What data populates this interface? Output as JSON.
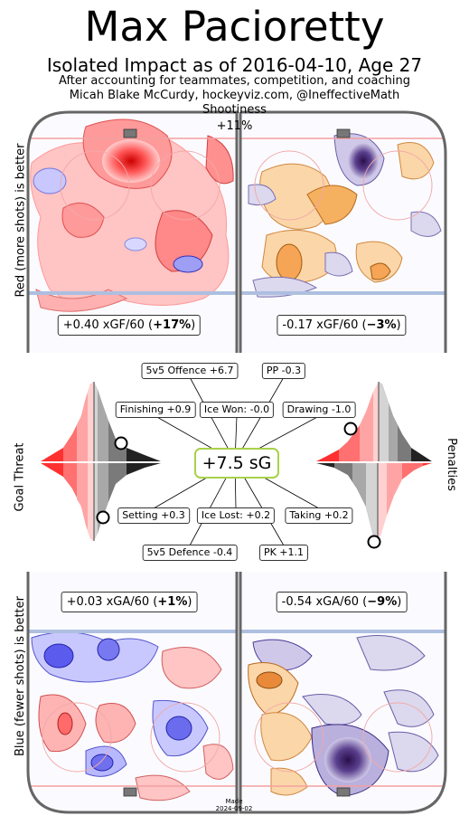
{
  "title": "Max Pacioretty",
  "subtitle": "Isolated Impact as of 2016-04-10, Age 27",
  "byline1": "After accounting for teammates, competition, and coaching",
  "byline2": "Micah Blake McCurdy, hockeyviz.com, @IneffectiveMath",
  "shootiness_label": "Shootiness",
  "shootiness_value": "+11%",
  "left_upper_label": "Red (more shots) is better",
  "left_lower_label": "Blue (fewer shots) is better",
  "goal_threat_label": "Goal Threat",
  "penalties_label": "Penalties",
  "made_label": "Made",
  "made_date": "2024-09-02",
  "colors": {
    "red": "#ff3333",
    "blue": "#4444ee",
    "orange": "#f0a050",
    "purple": "#3b1d6b",
    "rink": "#666666",
    "green": "#a8d14a"
  },
  "chart_data": [
    {
      "type": "table",
      "name": "shot-rate-impacts",
      "panels": [
        {
          "metric": "xGF/60",
          "value": 0.4,
          "pct": 17,
          "value_text": "+0.40",
          "metric_text": "xGF/60",
          "pct_text": "+17%"
        },
        {
          "metric": "xGF/60",
          "value": -0.17,
          "pct": -3,
          "value_text": "-0.17",
          "metric_text": "xGF/60",
          "pct_text": "−3%"
        },
        {
          "metric": "xGA/60",
          "value": 0.03,
          "pct": 1,
          "value_text": "+0.03",
          "metric_text": "xGA/60",
          "pct_text": "+1%"
        },
        {
          "metric": "xGA/60",
          "value": -0.54,
          "pct": -9,
          "value_text": "-0.54",
          "metric_text": "xGA/60",
          "pct_text": "−9%"
        }
      ]
    },
    {
      "type": "table",
      "name": "goal-components",
      "total": "+7.5 sG",
      "items": [
        {
          "label": "5v5 Offence",
          "value": 6.7,
          "text": "5v5 Offence +6.7"
        },
        {
          "label": "PP",
          "value": -0.3,
          "text": "PP -0.3"
        },
        {
          "label": "Finishing",
          "value": 0.9,
          "text": "Finishing +0.9"
        },
        {
          "label": "Ice Won:",
          "value": -0.0,
          "text": "Ice Won: -0.0"
        },
        {
          "label": "Drawing",
          "value": -1.0,
          "text": "Drawing -1.0"
        },
        {
          "label": "Setting",
          "value": 0.3,
          "text": "Setting +0.3"
        },
        {
          "label": "Ice Lost:",
          "value": 0.2,
          "text": "Ice Lost: +0.2"
        },
        {
          "label": "Taking",
          "value": 0.2,
          "text": "Taking +0.2"
        },
        {
          "label": "5v5 Defence",
          "value": -0.4,
          "text": "5v5 Defence -0.4"
        },
        {
          "label": "PK",
          "value": 1.1,
          "text": "PK +1.1"
        }
      ]
    },
    {
      "type": "area",
      "name": "percentile-distributions",
      "markers": [
        {
          "distribution": "goal-threat-offence",
          "percentile": 88
        },
        {
          "distribution": "goal-threat-defence",
          "percentile": 82
        },
        {
          "distribution": "penalties-drawing",
          "percentile": 18
        },
        {
          "distribution": "penalties-taking",
          "percentile": 93
        }
      ]
    }
  ]
}
